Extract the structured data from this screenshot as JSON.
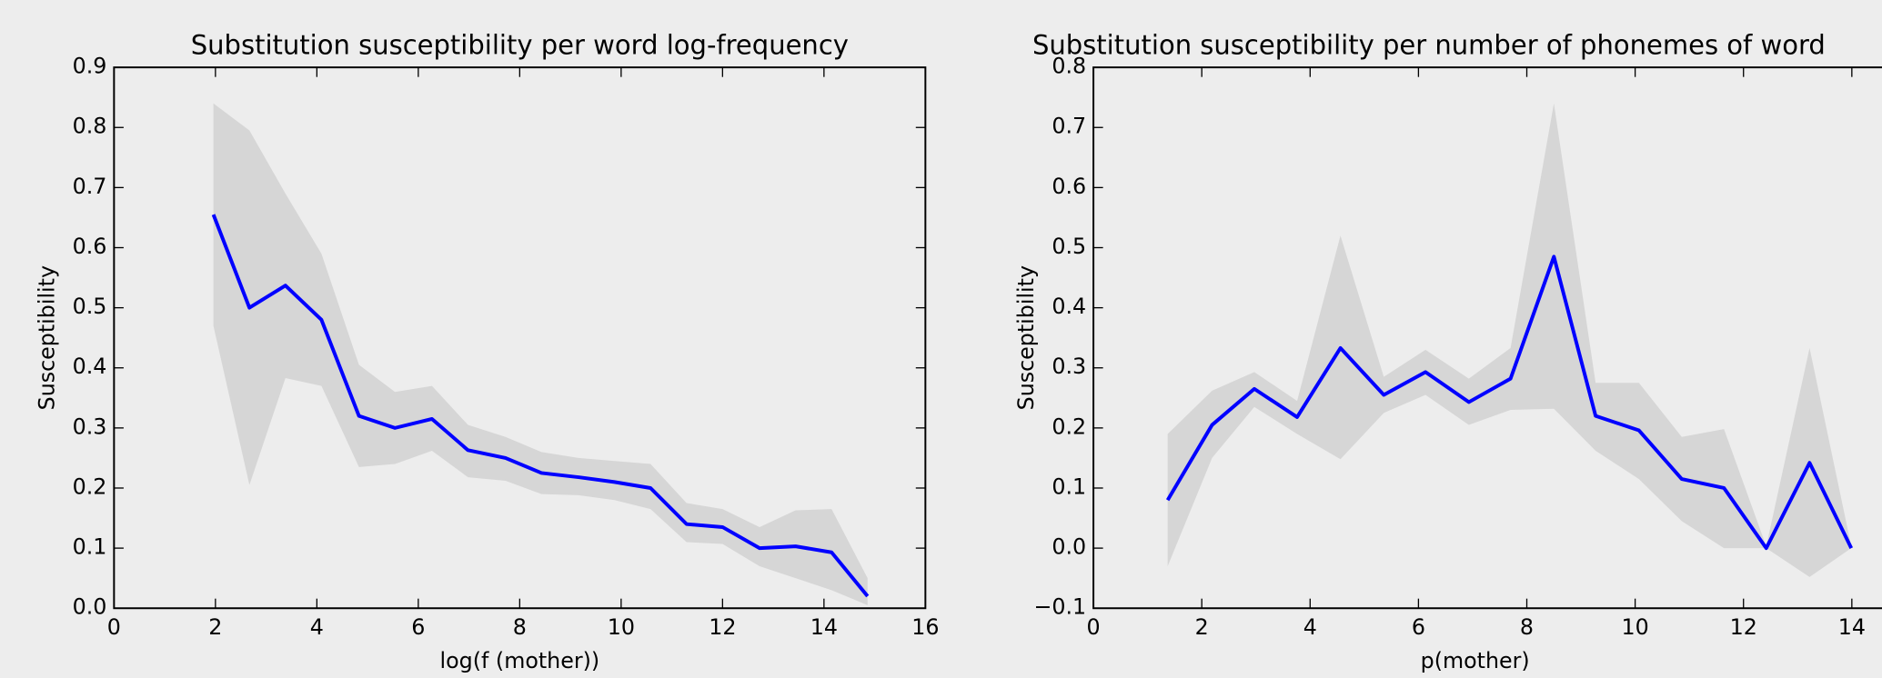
{
  "chart_data": [
    {
      "type": "line",
      "title": "Substitution susceptibility per word log-frequency",
      "xlabel": "log(f (mother))",
      "ylabel": "Susceptibility",
      "x": [
        1.96,
        2.67,
        3.38,
        4.09,
        4.83,
        5.54,
        6.27,
        6.98,
        7.72,
        8.43,
        9.16,
        9.87,
        10.58,
        11.29,
        12.0,
        12.73,
        13.44,
        14.15,
        14.86
      ],
      "values": [
        0.655,
        0.5,
        0.537,
        0.48,
        0.32,
        0.3,
        0.315,
        0.263,
        0.25,
        0.225,
        0.218,
        0.21,
        0.2,
        0.14,
        0.135,
        0.1,
        0.103,
        0.093,
        0.02
      ],
      "upper": [
        0.84,
        0.795,
        0.69,
        0.59,
        0.405,
        0.36,
        0.37,
        0.305,
        0.285,
        0.26,
        0.25,
        0.245,
        0.24,
        0.175,
        0.165,
        0.135,
        0.163,
        0.165,
        0.05
      ],
      "lower": [
        0.47,
        0.205,
        0.383,
        0.37,
        0.235,
        0.24,
        0.262,
        0.218,
        0.212,
        0.19,
        0.188,
        0.18,
        0.165,
        0.11,
        0.107,
        0.07,
        0.05,
        0.03,
        0.005
      ],
      "color": "#0000ff",
      "band_color": "#d6d6d6",
      "xlim": [
        0,
        16
      ],
      "xticks": [
        0,
        2,
        4,
        6,
        8,
        10,
        12,
        14,
        16
      ],
      "ylim": [
        0,
        0.9
      ],
      "yticks": [
        {
          "value": 0,
          "label": "0.0"
        },
        0.1,
        0.2,
        0.3,
        0.4,
        0.5,
        0.6,
        0.7,
        0.8,
        0.9
      ]
    },
    {
      "type": "line",
      "title": "Substitution susceptibility per number of phonemes of word",
      "xlabel": "p(mother)",
      "ylabel": "Susceptibility",
      "x": [
        1.37,
        2.19,
        2.97,
        3.76,
        4.56,
        5.36,
        6.13,
        6.93,
        7.7,
        8.5,
        9.27,
        10.07,
        10.86,
        11.64,
        12.42,
        13.22,
        13.99
      ],
      "values": [
        0.08,
        0.205,
        0.265,
        0.218,
        0.333,
        0.255,
        0.293,
        0.243,
        0.282,
        0.485,
        0.22,
        0.196,
        0.115,
        0.1,
        0.0,
        0.142,
        0.0
      ],
      "upper": [
        0.19,
        0.262,
        0.293,
        0.245,
        0.52,
        0.285,
        0.33,
        0.282,
        0.333,
        0.74,
        0.275,
        0.275,
        0.185,
        0.198,
        0.003,
        0.333,
        0.003
      ],
      "lower": [
        -0.03,
        0.15,
        0.235,
        0.19,
        0.148,
        0.225,
        0.255,
        0.205,
        0.23,
        0.232,
        0.162,
        0.115,
        0.045,
        0.0,
        0.0,
        -0.048,
        0.0
      ],
      "color": "#0000ff",
      "band_color": "#d6d6d6",
      "xlim": [
        0,
        15
      ],
      "xticks": [
        0,
        2,
        4,
        6,
        8,
        10,
        12,
        14
      ],
      "ylim": [
        -0.1,
        0.8
      ],
      "yticks": [
        {
          "value": -0.1,
          "label": "−0.1"
        },
        {
          "value": 0,
          "label": "0.0"
        },
        0.1,
        0.2,
        0.3,
        0.4,
        0.5,
        0.6,
        0.7,
        0.8
      ]
    }
  ]
}
